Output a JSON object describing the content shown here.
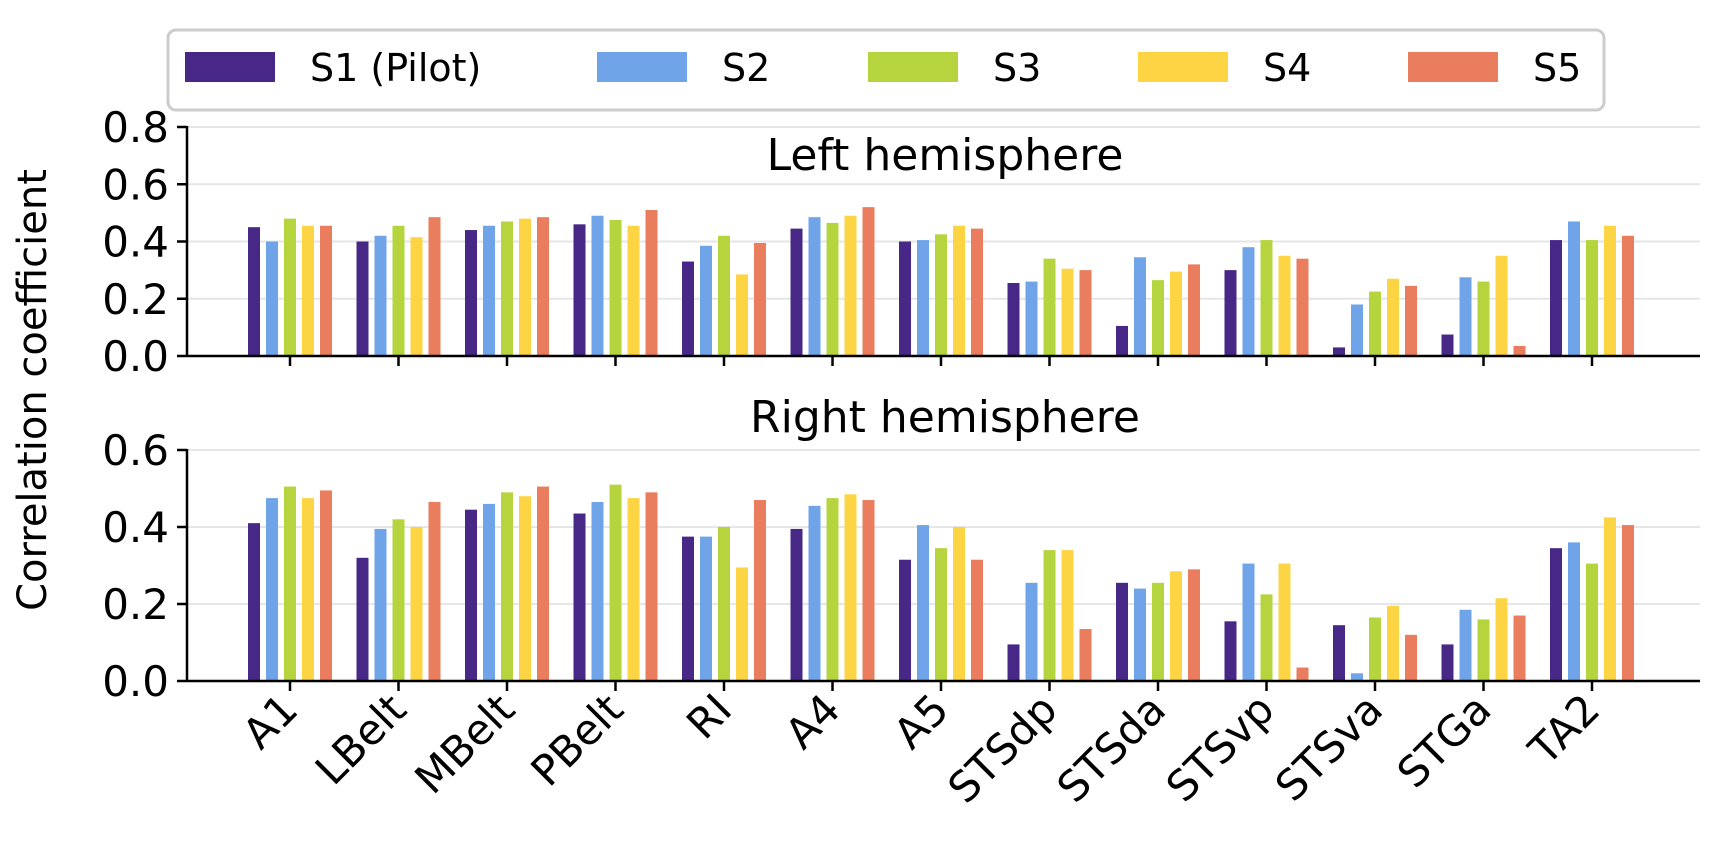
{
  "chart_data": {
    "type": "bar",
    "ylabel": "Correlation coefficient",
    "categories": [
      "A1",
      "LBelt",
      "MBelt",
      "PBelt",
      "RI",
      "A4",
      "A5",
      "STSdp",
      "STSda",
      "STSvp",
      "STSva",
      "STGa",
      "TA2"
    ],
    "legend": {
      "placement": "top",
      "entries": [
        {
          "name": "S1 (Pilot)",
          "color": "#472887"
        },
        {
          "name": "S2",
          "color": "#6FA5E8"
        },
        {
          "name": "S3",
          "color": "#B5D43D"
        },
        {
          "name": "S4",
          "color": "#FDD443"
        },
        {
          "name": "S5",
          "color": "#EA7D5D"
        }
      ]
    },
    "panels": [
      {
        "title": "Left hemisphere",
        "ylim": [
          0,
          0.8
        ],
        "yticks": [
          "0.0",
          "0.2",
          "0.4",
          "0.6",
          "0.8"
        ],
        "ytick_values": [
          0,
          0.2,
          0.4,
          0.6,
          0.8
        ],
        "grid": true,
        "series": [
          {
            "name": "S1 (Pilot)",
            "values": [
              0.45,
              0.4,
              0.44,
              0.46,
              0.33,
              0.445,
              0.4,
              0.255,
              0.105,
              0.3,
              0.03,
              0.075,
              0.405
            ]
          },
          {
            "name": "S2",
            "values": [
              0.4,
              0.42,
              0.455,
              0.49,
              0.385,
              0.485,
              0.405,
              0.26,
              0.345,
              0.38,
              0.18,
              0.275,
              0.47
            ]
          },
          {
            "name": "S3",
            "values": [
              0.48,
              0.455,
              0.47,
              0.475,
              0.42,
              0.465,
              0.425,
              0.34,
              0.265,
              0.405,
              0.225,
              0.26,
              0.405
            ]
          },
          {
            "name": "S4",
            "values": [
              0.455,
              0.415,
              0.48,
              0.455,
              0.285,
              0.49,
              0.455,
              0.305,
              0.295,
              0.35,
              0.27,
              0.35,
              0.455
            ]
          },
          {
            "name": "S5",
            "values": [
              0.455,
              0.485,
              0.485,
              0.51,
              0.395,
              0.52,
              0.445,
              0.3,
              0.32,
              0.34,
              0.245,
              0.035,
              0.42
            ]
          }
        ]
      },
      {
        "title": "Right hemisphere",
        "ylim": [
          0,
          0.6
        ],
        "yticks": [
          "0.0",
          "0.2",
          "0.4",
          "0.6"
        ],
        "ytick_values": [
          0,
          0.2,
          0.4,
          0.6
        ],
        "grid": true,
        "series": [
          {
            "name": "S1 (Pilot)",
            "values": [
              0.41,
              0.32,
              0.445,
              0.435,
              0.375,
              0.395,
              0.315,
              0.095,
              0.255,
              0.155,
              0.145,
              0.095,
              0.345
            ]
          },
          {
            "name": "S2",
            "values": [
              0.475,
              0.395,
              0.46,
              0.465,
              0.375,
              0.455,
              0.405,
              0.255,
              0.24,
              0.305,
              0.02,
              0.185,
              0.36
            ]
          },
          {
            "name": "S3",
            "values": [
              0.505,
              0.42,
              0.49,
              0.51,
              0.4,
              0.475,
              0.345,
              0.34,
              0.255,
              0.225,
              0.165,
              0.16,
              0.305
            ]
          },
          {
            "name": "S4",
            "values": [
              0.475,
              0.4,
              0.48,
              0.475,
              0.295,
              0.485,
              0.4,
              0.34,
              0.285,
              0.305,
              0.195,
              0.215,
              0.425
            ]
          },
          {
            "name": "S5",
            "values": [
              0.495,
              0.465,
              0.505,
              0.49,
              0.47,
              0.47,
              0.315,
              0.135,
              0.29,
              0.035,
              0.12,
              0.17,
              0.405
            ]
          }
        ]
      }
    ]
  }
}
